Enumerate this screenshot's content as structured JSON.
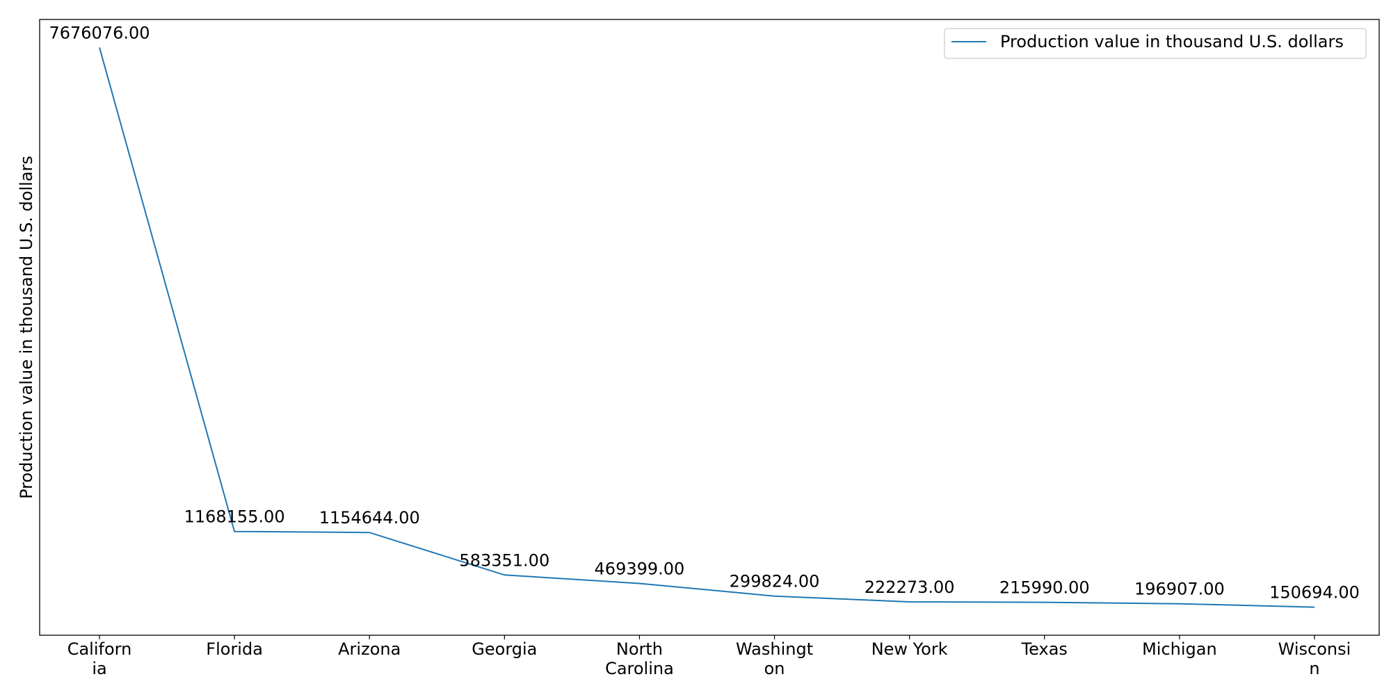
{
  "chart_data": {
    "type": "line",
    "title": "",
    "xlabel": "",
    "ylabel": "Production value in thousand U.S. dollars",
    "categories": [
      [
        "Californ",
        "ia"
      ],
      [
        "Florida"
      ],
      [
        "Arizona"
      ],
      [
        "Georgia"
      ],
      [
        "North",
        "Carolina"
      ],
      [
        "Washingt",
        "on"
      ],
      [
        "New York"
      ],
      [
        "Texas"
      ],
      [
        "Michigan"
      ],
      [
        "Wisconsi",
        "n"
      ]
    ],
    "series": [
      {
        "name": "Production value in thousand U.S. dollars",
        "color": "#1f77b4",
        "values": [
          7676076,
          1168155,
          1154644,
          583351,
          469399,
          299824,
          222273,
          215990,
          196907,
          150694
        ],
        "value_labels": [
          "7676076.00",
          "1168155.00",
          "1154644.00",
          "583351.00",
          "469399.00",
          "299824.00",
          "222273.00",
          "215990.00",
          "196907.00",
          "150694.00"
        ]
      }
    ],
    "ylim": [
      -226576,
      8052765
    ],
    "y_ticks_visible": false,
    "grid": false,
    "legend_position": "top-right"
  }
}
